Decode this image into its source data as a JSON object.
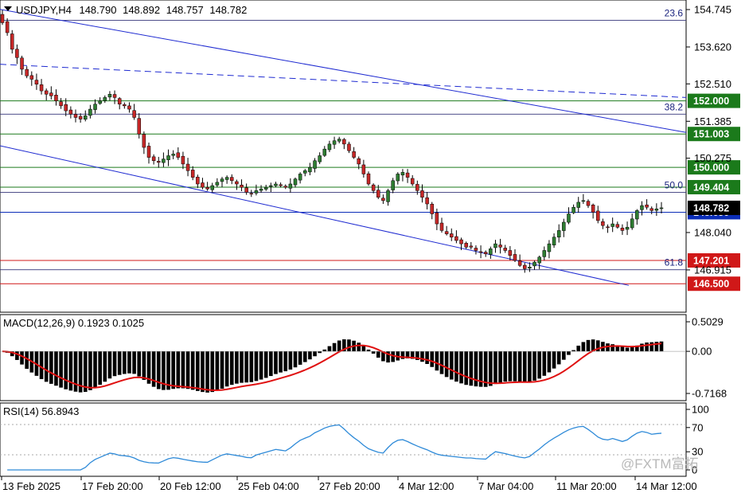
{
  "header": {
    "symbol": "USDJPY,H4",
    "open": "148.790",
    "high": "148.892",
    "low": "148.757",
    "close": "148.782"
  },
  "colors": {
    "bull": "#2e7d32",
    "bear": "#c62828",
    "channel": "#1f2bd1",
    "green_level": "#1b7a1b",
    "red_level": "#d01818",
    "blue_level": "#0b2db8",
    "fib": "#34347a",
    "macd_hist": "#000000",
    "macd_signal": "#e01010",
    "rsi_line": "#2e8ad8"
  },
  "price_axis": {
    "ticks": [
      "154.745",
      "153.620",
      "152.510",
      "151.385",
      "150.275",
      "148.040",
      "146.915"
    ],
    "tick_values": [
      154.745,
      153.62,
      152.51,
      151.385,
      150.275,
      148.04,
      146.915
    ],
    "current_label": "148.782"
  },
  "levels": [
    {
      "value": 152.0,
      "label": "152.000",
      "kind": "green"
    },
    {
      "value": 151.003,
      "label": "151.003",
      "kind": "green"
    },
    {
      "value": 150.0,
      "label": "150.000",
      "kind": "green"
    },
    {
      "value": 149.404,
      "label": "149.404",
      "kind": "green"
    },
    {
      "value": 148.65,
      "label": "148.650",
      "kind": "blue"
    },
    {
      "value": 147.201,
      "label": "147.201",
      "kind": "red"
    },
    {
      "value": 146.5,
      "label": "146.500",
      "kind": "red"
    }
  ],
  "fib_levels": [
    {
      "value": 154.42,
      "label": "23.6"
    },
    {
      "value": 151.6,
      "label": "38.2"
    },
    {
      "value": 149.25,
      "label": "50.0"
    },
    {
      "value": 146.92,
      "label": "61.8"
    }
  ],
  "macd": {
    "label": "MACD(12,26,9) 0.1923 0.1025",
    "ticks": [
      "0.5029",
      "0.00",
      "-0.7168"
    ]
  },
  "rsi": {
    "label": "RSI(14) 56.8943",
    "ticks": [
      "100",
      "70",
      "30",
      "0"
    ]
  },
  "time_axis": {
    "labels": [
      "13 Feb 2025",
      "17 Feb 20:00",
      "20 Feb 12:00",
      "25 Feb 04:00",
      "27 Feb 20:00",
      "4 Mar 12:00",
      "7 Mar 04:00",
      "11 Mar 20:00",
      "14 Mar 12:00"
    ]
  },
  "watermark": "@FXTM富拓",
  "chart_data": {
    "type": "candlestick",
    "symbol": "USDJPY",
    "timeframe": "H4",
    "ylim": [
      146.3,
      155.0
    ],
    "closes": [
      154.35,
      154.05,
      153.55,
      153.3,
      152.95,
      152.75,
      152.65,
      152.5,
      152.3,
      152.2,
      152.15,
      152.0,
      151.85,
      151.7,
      151.6,
      151.5,
      151.45,
      151.55,
      151.75,
      151.9,
      152.0,
      152.1,
      152.2,
      152.1,
      151.9,
      151.85,
      151.75,
      151.5,
      151.0,
      150.6,
      150.3,
      150.2,
      150.15,
      150.25,
      150.35,
      150.4,
      150.3,
      150.1,
      149.9,
      149.7,
      149.5,
      149.4,
      149.35,
      149.45,
      149.55,
      149.65,
      149.7,
      149.6,
      149.5,
      149.4,
      149.25,
      149.2,
      149.3,
      149.35,
      149.4,
      149.45,
      149.5,
      149.45,
      149.4,
      149.5,
      149.65,
      149.8,
      149.9,
      150.0,
      150.2,
      150.35,
      150.55,
      150.7,
      150.8,
      150.85,
      150.7,
      150.5,
      150.3,
      150.1,
      149.8,
      149.5,
      149.3,
      149.1,
      149.0,
      149.3,
      149.6,
      149.8,
      149.85,
      149.7,
      149.5,
      149.3,
      149.1,
      148.9,
      148.6,
      148.3,
      148.1,
      148.0,
      147.9,
      147.8,
      147.7,
      147.6,
      147.6,
      147.5,
      147.45,
      147.4,
      147.55,
      147.7,
      147.6,
      147.5,
      147.35,
      147.2,
      147.05,
      146.95,
      147.0,
      147.15,
      147.3,
      147.5,
      147.7,
      147.9,
      148.1,
      148.35,
      148.6,
      148.8,
      148.95,
      149.0,
      148.85,
      148.65,
      148.4,
      148.25,
      148.2,
      148.3,
      148.2,
      148.1,
      148.2,
      148.45,
      148.7,
      148.85,
      148.8,
      148.7,
      148.75,
      148.782
    ],
    "macd": {
      "ylim": [
        -0.7168,
        0.5029
      ]
    },
    "rsi": {
      "ylim": [
        0,
        100
      ],
      "levels": [
        30,
        70
      ]
    }
  }
}
